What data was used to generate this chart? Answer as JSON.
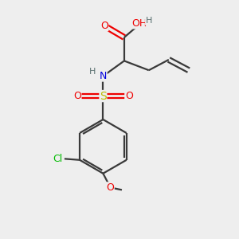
{
  "bg_color": "#eeeeee",
  "atom_colors": {
    "C": "#3a3a3a",
    "H": "#5a7070",
    "O": "#ee0000",
    "N": "#0000dd",
    "S": "#bbbb00",
    "Cl": "#00bb00"
  },
  "bond_color": "#3a3a3a",
  "bond_lw": 1.6,
  "figure_size": [
    3.0,
    3.0
  ],
  "dpi": 100
}
